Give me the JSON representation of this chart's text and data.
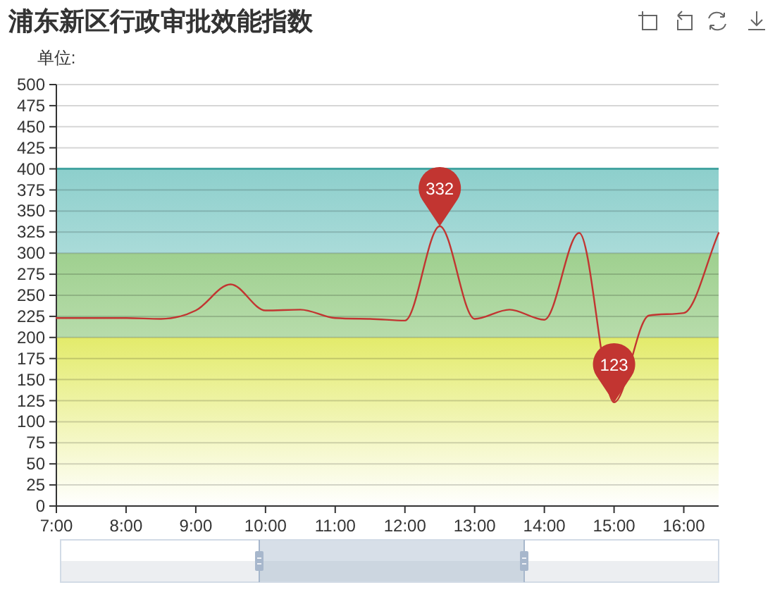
{
  "chart_data": {
    "type": "line",
    "title": "浦东新区行政审批效能指数",
    "ylabel": "单位:",
    "x": [
      7,
      7.5,
      8,
      8.5,
      9,
      9.5,
      10,
      10.5,
      11,
      11.5,
      12,
      12.5,
      13,
      13.5,
      14,
      14.5,
      15,
      15.5,
      16,
      16.5
    ],
    "series": [
      {
        "color": "#c23531",
        "values": [
          223,
          223,
          223,
          222,
          232,
          263,
          232,
          233,
          223,
          222,
          220,
          332,
          222,
          233,
          221,
          324,
          123,
          226,
          229,
          324
        ]
      }
    ],
    "xlim": [
      7,
      16.5
    ],
    "xticks": [
      {
        "value": 7,
        "label": "7:00"
      },
      {
        "value": 8,
        "label": "8:00"
      },
      {
        "value": 9,
        "label": "9:00"
      },
      {
        "value": 10,
        "label": "10:00"
      },
      {
        "value": 11,
        "label": "11:00"
      },
      {
        "value": 12,
        "label": "12:00"
      },
      {
        "value": 13,
        "label": "13:00"
      },
      {
        "value": 14,
        "label": "14:00"
      },
      {
        "value": 15,
        "label": "15:00"
      },
      {
        "value": 16,
        "label": "16:00"
      }
    ],
    "ylim": [
      0,
      500
    ],
    "yticks": [
      0,
      25,
      50,
      75,
      100,
      125,
      150,
      175,
      200,
      225,
      250,
      275,
      300,
      325,
      350,
      375,
      400,
      425,
      450,
      475,
      500
    ],
    "grid": "y",
    "line_style": "solid",
    "bands": [
      {
        "axis": "y",
        "from": 0,
        "to": 200,
        "color": "#e3eb6b"
      },
      {
        "axis": "y",
        "from": 200,
        "to": 300,
        "color": "#9fd08f"
      },
      {
        "axis": "y",
        "from": 300,
        "to": 400,
        "color": "#8dcfcc"
      }
    ],
    "ref_lines": [
      {
        "axis": "y",
        "value": 400,
        "color": "#45a5a2"
      }
    ],
    "annotations": [
      {
        "text": "332",
        "x": 12.5,
        "y": 332
      },
      {
        "text": "123",
        "x": 15,
        "y": 123
      }
    ]
  }
}
